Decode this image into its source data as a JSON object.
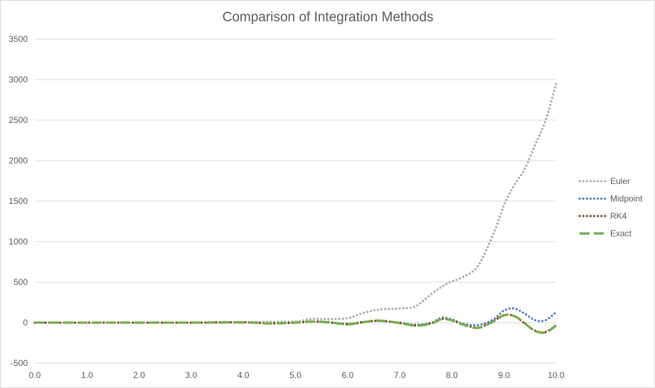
{
  "chart_data": {
    "type": "line",
    "title": "Comparison of Integration Methods",
    "xlabel": "",
    "ylabel": "",
    "xlim": [
      0,
      10
    ],
    "ylim": [
      -500,
      3500
    ],
    "x_ticks": [
      "0.0",
      "1.0",
      "2.0",
      "3.0",
      "4.0",
      "5.0",
      "6.0",
      "7.0",
      "8.0",
      "9.0",
      "10.0"
    ],
    "y_ticks": [
      "-500",
      "0",
      "500",
      "1000",
      "1500",
      "2000",
      "2500",
      "3000",
      "3500"
    ],
    "grid": true,
    "legend_position": "right",
    "series": [
      {
        "name": "Euler",
        "color": "#a5a5a5",
        "style": "dotted",
        "x": [
          0,
          0.5,
          1,
          1.5,
          2,
          2.5,
          3,
          3.5,
          4,
          4.5,
          5,
          5.3,
          5.6,
          6,
          6.3,
          6.6,
          7,
          7.3,
          7.6,
          7.9,
          8.2,
          8.5,
          8.8,
          9,
          9.2,
          9.4,
          9.6,
          9.8,
          10
        ],
        "y": [
          0,
          1,
          -1,
          2,
          -2,
          3,
          -3,
          4,
          8,
          10,
          15,
          45,
          45,
          55,
          120,
          160,
          175,
          200,
          350,
          480,
          560,
          700,
          1100,
          1450,
          1700,
          1900,
          2200,
          2500,
          2950
        ]
      },
      {
        "name": "Midpoint",
        "color": "#4472c4",
        "style": "dotted",
        "x": [
          0,
          1,
          2,
          3,
          4,
          4.5,
          5,
          5.3,
          5.6,
          6,
          6.3,
          6.6,
          7,
          7.3,
          7.6,
          7.8,
          8,
          8.2,
          8.5,
          8.8,
          9,
          9.2,
          9.4,
          9.6,
          9.8,
          10
        ],
        "y": [
          0,
          0,
          0,
          0,
          5,
          -10,
          0,
          15,
          10,
          -15,
          10,
          20,
          0,
          -25,
          0,
          60,
          40,
          -10,
          -30,
          40,
          150,
          175,
          110,
          30,
          30,
          130
        ]
      },
      {
        "name": "RK4",
        "color": "#843c0c",
        "style": "dotted",
        "x": [
          0,
          1,
          2,
          3,
          4,
          4.5,
          5,
          5.3,
          5.6,
          6,
          6.3,
          6.6,
          7,
          7.3,
          7.6,
          7.8,
          8,
          8.2,
          8.5,
          8.8,
          9,
          9.2,
          9.4,
          9.6,
          9.8,
          10
        ],
        "y": [
          0,
          0,
          0,
          0,
          3,
          -10,
          0,
          12,
          5,
          -20,
          5,
          25,
          -5,
          -35,
          -10,
          45,
          30,
          -20,
          -60,
          20,
          95,
          80,
          -10,
          -100,
          -115,
          -30
        ]
      },
      {
        "name": "Exact",
        "color": "#70ad47",
        "style": "dashed",
        "x": [
          0,
          1,
          2,
          3,
          4,
          4.5,
          5,
          5.3,
          5.6,
          6,
          6.3,
          6.6,
          7,
          7.3,
          7.6,
          7.8,
          8,
          8.2,
          8.5,
          8.8,
          9,
          9.2,
          9.4,
          9.6,
          9.8,
          10
        ],
        "y": [
          0,
          0,
          0,
          0,
          3,
          -10,
          0,
          12,
          5,
          -20,
          5,
          25,
          -5,
          -38,
          -12,
          42,
          28,
          -22,
          -65,
          15,
          90,
          80,
          -10,
          -105,
          -120,
          -35
        ]
      }
    ]
  }
}
